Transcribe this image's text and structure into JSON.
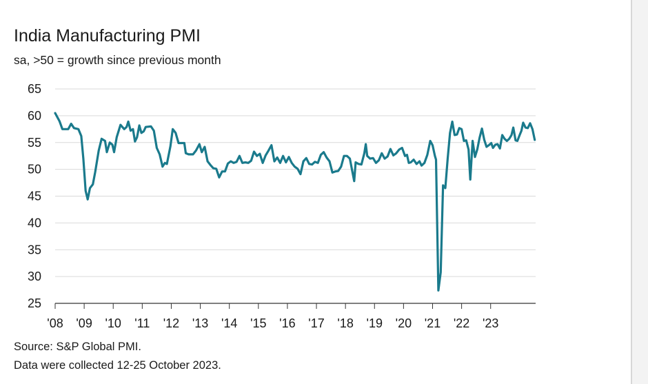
{
  "chart_data": {
    "type": "line",
    "title": "India Manufacturing PMI",
    "subtitle": "sa, >50 = growth since previous month",
    "xlabel": "",
    "ylabel": "",
    "ylim": [
      25,
      65
    ],
    "y_ticks": [
      "65",
      "60",
      "55",
      "50",
      "45",
      "40",
      "35",
      "30",
      "25"
    ],
    "x_ticks": [
      "'08",
      "'09",
      "'10",
      "'11",
      "'12",
      "'13",
      "'14",
      "'15",
      "'16",
      "'17",
      "'18",
      "'19",
      "'20",
      "'21",
      "'22",
      "'23"
    ],
    "grid": true,
    "legend": "none",
    "color": "#1a7a8c",
    "series": [
      {
        "name": "",
        "points": [
          [
            2008.0,
            60.5
          ],
          [
            2008.15,
            59
          ],
          [
            2008.25,
            57.5
          ],
          [
            2008.45,
            57.5
          ],
          [
            2008.55,
            58.5
          ],
          [
            2008.65,
            57.7
          ],
          [
            2008.8,
            57.5
          ],
          [
            2008.9,
            56.2
          ],
          [
            2008.97,
            52
          ],
          [
            2009.05,
            46
          ],
          [
            2009.12,
            44.4
          ],
          [
            2009.2,
            46.5
          ],
          [
            2009.3,
            47.2
          ],
          [
            2009.38,
            49.5
          ],
          [
            2009.5,
            53.5
          ],
          [
            2009.6,
            55.7
          ],
          [
            2009.72,
            55.3
          ],
          [
            2009.78,
            53.2
          ],
          [
            2009.88,
            55
          ],
          [
            2009.97,
            54.6
          ],
          [
            2010.03,
            53.2
          ],
          [
            2010.12,
            56
          ],
          [
            2010.25,
            58.3
          ],
          [
            2010.38,
            57.5
          ],
          [
            2010.46,
            57.9
          ],
          [
            2010.52,
            58.9
          ],
          [
            2010.6,
            57.2
          ],
          [
            2010.68,
            57.5
          ],
          [
            2010.75,
            55.2
          ],
          [
            2010.82,
            56
          ],
          [
            2010.9,
            58.2
          ],
          [
            2010.97,
            56.8
          ],
          [
            2011.05,
            57.1
          ],
          [
            2011.12,
            57.9
          ],
          [
            2011.3,
            58
          ],
          [
            2011.4,
            57.2
          ],
          [
            2011.5,
            54
          ],
          [
            2011.6,
            52.8
          ],
          [
            2011.7,
            50.5
          ],
          [
            2011.78,
            51.2
          ],
          [
            2011.85,
            51
          ],
          [
            2011.97,
            54.3
          ],
          [
            2012.05,
            57.5
          ],
          [
            2012.15,
            56.8
          ],
          [
            2012.25,
            54.9
          ],
          [
            2012.35,
            54.9
          ],
          [
            2012.45,
            54.9
          ],
          [
            2012.5,
            53
          ],
          [
            2012.6,
            52.8
          ],
          [
            2012.75,
            52.8
          ],
          [
            2012.85,
            53.5
          ],
          [
            2012.97,
            54.7
          ],
          [
            2013.05,
            53.2
          ],
          [
            2013.15,
            54.2
          ],
          [
            2013.25,
            51.5
          ],
          [
            2013.35,
            50.8
          ],
          [
            2013.45,
            50.2
          ],
          [
            2013.55,
            50.1
          ],
          [
            2013.65,
            48.5
          ],
          [
            2013.75,
            49.6
          ],
          [
            2013.85,
            49.6
          ],
          [
            2013.95,
            51.1
          ],
          [
            2014.05,
            51.5
          ],
          [
            2014.15,
            51.2
          ],
          [
            2014.25,
            51.4
          ],
          [
            2014.35,
            52.5
          ],
          [
            2014.45,
            51.2
          ],
          [
            2014.55,
            51.3
          ],
          [
            2014.65,
            51.2
          ],
          [
            2014.75,
            51.6
          ],
          [
            2014.85,
            53.3
          ],
          [
            2014.95,
            52.5
          ],
          [
            2015.05,
            52.9
          ],
          [
            2015.15,
            51.2
          ],
          [
            2015.25,
            52.6
          ],
          [
            2015.35,
            53.5
          ],
          [
            2015.45,
            54.5
          ],
          [
            2015.55,
            51.5
          ],
          [
            2015.65,
            52.2
          ],
          [
            2015.75,
            51.2
          ],
          [
            2015.85,
            52.5
          ],
          [
            2015.95,
            51.3
          ],
          [
            2016.05,
            52.3
          ],
          [
            2016.15,
            51.2
          ],
          [
            2016.25,
            50.5
          ],
          [
            2016.35,
            50.1
          ],
          [
            2016.45,
            49.1
          ],
          [
            2016.55,
            51.5
          ],
          [
            2016.65,
            52.1
          ],
          [
            2016.75,
            51
          ],
          [
            2016.85,
            50.9
          ],
          [
            2016.95,
            51.4
          ],
          [
            2017.05,
            51.2
          ],
          [
            2017.15,
            52.7
          ],
          [
            2017.25,
            53.2
          ],
          [
            2017.35,
            52.2
          ],
          [
            2017.45,
            51.5
          ],
          [
            2017.55,
            49.4
          ],
          [
            2017.65,
            49.6
          ],
          [
            2017.75,
            49.7
          ],
          [
            2017.85,
            50.5
          ],
          [
            2017.95,
            52.5
          ],
          [
            2018.05,
            52.5
          ],
          [
            2018.15,
            52
          ],
          [
            2018.25,
            49.2
          ],
          [
            2018.3,
            47.8
          ],
          [
            2018.35,
            51.3
          ],
          [
            2018.45,
            51
          ],
          [
            2018.55,
            50.9
          ],
          [
            2018.65,
            53
          ],
          [
            2018.7,
            54.7
          ],
          [
            2018.75,
            52.5
          ],
          [
            2018.85,
            52
          ],
          [
            2018.95,
            52.1
          ],
          [
            2019.05,
            51.2
          ],
          [
            2019.15,
            51.7
          ],
          [
            2019.25,
            53
          ],
          [
            2019.35,
            52
          ],
          [
            2019.45,
            52.4
          ],
          [
            2019.55,
            53.8
          ],
          [
            2019.65,
            52.6
          ],
          [
            2019.75,
            53
          ],
          [
            2019.85,
            53.7
          ],
          [
            2019.95,
            54
          ],
          [
            2020.05,
            52.5
          ],
          [
            2020.12,
            52.7
          ],
          [
            2020.18,
            51.2
          ],
          [
            2020.25,
            51.3
          ],
          [
            2020.35,
            51.8
          ],
          [
            2020.45,
            51
          ],
          [
            2020.55,
            51.5
          ],
          [
            2020.62,
            50.7
          ],
          [
            2020.72,
            51.2
          ],
          [
            2020.82,
            52.7
          ],
          [
            2020.92,
            55.3
          ],
          [
            2021.0,
            54.5
          ],
          [
            2021.08,
            52.5
          ],
          [
            2021.12,
            51.8
          ],
          [
            2021.2,
            27.4
          ],
          [
            2021.28,
            30.8
          ],
          [
            2021.36,
            47
          ],
          [
            2021.44,
            46.5
          ],
          [
            2021.52,
            52
          ],
          [
            2021.6,
            56.8
          ],
          [
            2021.68,
            58.9
          ],
          [
            2021.76,
            56.4
          ],
          [
            2021.84,
            56.5
          ],
          [
            2021.92,
            57.7
          ],
          [
            2022.0,
            57.5
          ],
          [
            2022.08,
            55.3
          ],
          [
            2022.16,
            55.4
          ],
          [
            2022.24,
            53.7
          ],
          [
            2022.3,
            48.1
          ],
          [
            2022.38,
            55.3
          ],
          [
            2022.46,
            52.3
          ],
          [
            2022.54,
            53.7
          ],
          [
            2022.62,
            55.9
          ],
          [
            2022.7,
            57.6
          ],
          [
            2022.78,
            55.5
          ],
          [
            2022.86,
            54.2
          ],
          [
            2022.94,
            54.5
          ],
          [
            2023.02,
            54.9
          ],
          [
            2023.08,
            54
          ],
          [
            2023.16,
            54.6
          ],
          [
            2023.24,
            54.7
          ],
          [
            2023.32,
            53.9
          ],
          [
            2023.4,
            56.4
          ],
          [
            2023.48,
            55.7
          ],
          [
            2023.56,
            55.3
          ],
          [
            2023.64,
            55.7
          ],
          [
            2023.72,
            56.4
          ],
          [
            2023.78,
            57.8
          ],
          [
            2023.86,
            55.4
          ],
          [
            2023.92,
            55.3
          ],
          [
            2024.0,
            56.4
          ],
          [
            2024.06,
            57.2
          ],
          [
            2024.12,
            58.7
          ],
          [
            2024.2,
            57.8
          ],
          [
            2024.28,
            57.7
          ],
          [
            2024.36,
            58.6
          ],
          [
            2024.44,
            57.5
          ],
          [
            2024.52,
            55.5
          ]
        ]
      }
    ],
    "source_note": "Source: S&P Global PMI.",
    "collection_note": "Data were collected 12-25 October 2023."
  }
}
